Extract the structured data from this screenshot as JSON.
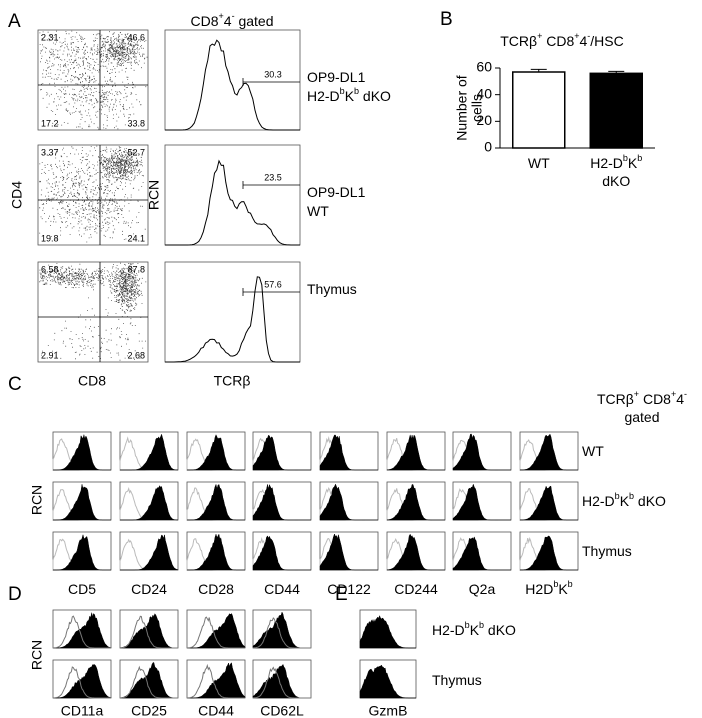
{
  "panel_a": {
    "letter": "A",
    "title": [
      "CD8",
      {
        "sup": "+"
      },
      "4",
      {
        "sup": "-"
      },
      " gated"
    ],
    "dot_y_label": "CD4",
    "dot_x_label": "CD8",
    "hist_y_label": "RCN",
    "hist_x_label": "TCRβ",
    "rows": [
      {
        "quadrants": [
          2.31,
          46.6,
          17.2,
          33.8
        ],
        "gate": 30.3,
        "label_lines": [
          [
            "OP9-DL1"
          ],
          [
            "H2-D",
            {
              "sup": "b"
            },
            "K",
            {
              "sup": "b"
            },
            " dKO"
          ]
        ]
      },
      {
        "quadrants": [
          3.37,
          52.7,
          19.8,
          24.1
        ],
        "gate": 23.5,
        "label_lines": [
          [
            "OP9-DL1"
          ],
          [
            "WT"
          ]
        ]
      },
      {
        "quadrants": [
          6.58,
          87.8,
          2.91,
          2.68
        ],
        "gate": 57.6,
        "label_lines": [
          [
            "Thymus"
          ]
        ]
      }
    ]
  },
  "panel_b": {
    "letter": "B",
    "chart_data": {
      "type": "bar",
      "title": [
        "TCRβ",
        {
          "sup": "+"
        },
        " CD8",
        {
          "sup": "+"
        },
        "4",
        {
          "sup": "-"
        },
        "/HSC"
      ],
      "y_label": [
        "Number of",
        "cells"
      ],
      "categories": [
        [
          [
            "WT"
          ]
        ],
        [
          [
            "H2-D",
            {
              "sup": "b"
            },
            "K",
            {
              "sup": "b"
            }
          ],
          [
            "dKO"
          ]
        ]
      ],
      "values": [
        57,
        56
      ],
      "errors": [
        2,
        1.5
      ],
      "colors": [
        "#ffffff",
        "#000000"
      ],
      "ylim": [
        0,
        60
      ],
      "yticks": [
        0,
        20,
        40,
        60
      ]
    }
  },
  "panel_c": {
    "letter": "C",
    "title_lines": [
      [
        "TCRβ",
        {
          "sup": "+"
        },
        " CD8",
        {
          "sup": "+"
        },
        "4",
        {
          "sup": "-"
        }
      ],
      [
        "gated"
      ]
    ],
    "y_label": "RCN",
    "rows": [
      [
        "WT"
      ],
      [
        "H2-D",
        {
          "sup": "b"
        },
        "K",
        {
          "sup": "b"
        },
        " dKO"
      ],
      [
        "Thymus"
      ]
    ],
    "columns": [
      [
        "CD5"
      ],
      [
        "CD24"
      ],
      [
        "CD28"
      ],
      [
        "CD44"
      ],
      [
        "CD122"
      ],
      [
        "CD244"
      ],
      [
        "Q2a"
      ],
      [
        "H2D",
        {
          "sup": "b"
        },
        "K",
        {
          "sup": "b"
        }
      ]
    ]
  },
  "panel_d": {
    "letter": "D",
    "y_label": "RCN",
    "columns": [
      "CD11a",
      "CD25",
      "CD44",
      "CD62L"
    ]
  },
  "panel_e": {
    "letter": "E",
    "rows": [
      [
        "H2-D",
        {
          "sup": "b"
        },
        "K",
        {
          "sup": "b"
        },
        " dKO"
      ],
      [
        "Thymus"
      ]
    ],
    "x_label": "GzmB"
  }
}
